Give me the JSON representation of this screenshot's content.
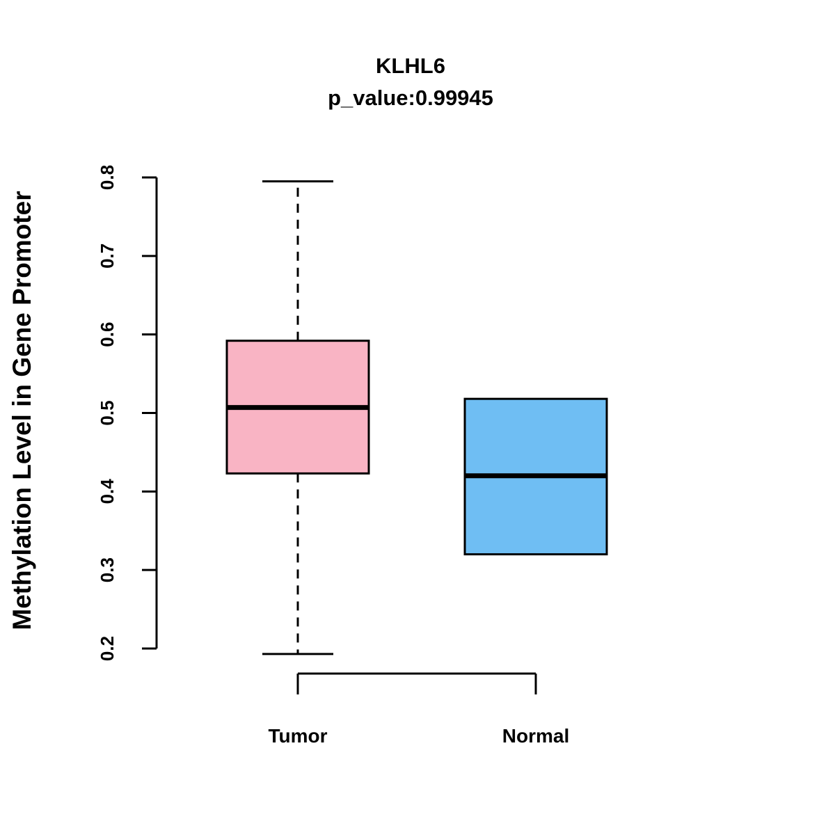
{
  "title": "KLHL6",
  "subtitle": "p_value:0.99945",
  "ylabel": "Methylation Level in Gene Promoter",
  "chart_data": {
    "type": "boxplot",
    "title": "KLHL6",
    "subtitle": "p_value:0.99945",
    "ylabel": "Methylation Level in Gene Promoter",
    "xlabel": "",
    "categories": [
      "Tumor",
      "Normal"
    ],
    "yticks": [
      0.2,
      0.3,
      0.4,
      0.5,
      0.6,
      0.7,
      0.8
    ],
    "ylim": [
      0.19,
      0.8
    ],
    "grid": false,
    "legend": "none",
    "series": [
      {
        "name": "Tumor",
        "color": "#F9B4C4",
        "whisker_low": 0.193,
        "q1": 0.423,
        "median": 0.507,
        "q3": 0.592,
        "whisker_high": 0.795
      },
      {
        "name": "Normal",
        "color": "#6FBEF3",
        "whisker_low": 0.32,
        "q1": 0.32,
        "median": 0.42,
        "q3": 0.518,
        "whisker_high": 0.518
      }
    ]
  }
}
